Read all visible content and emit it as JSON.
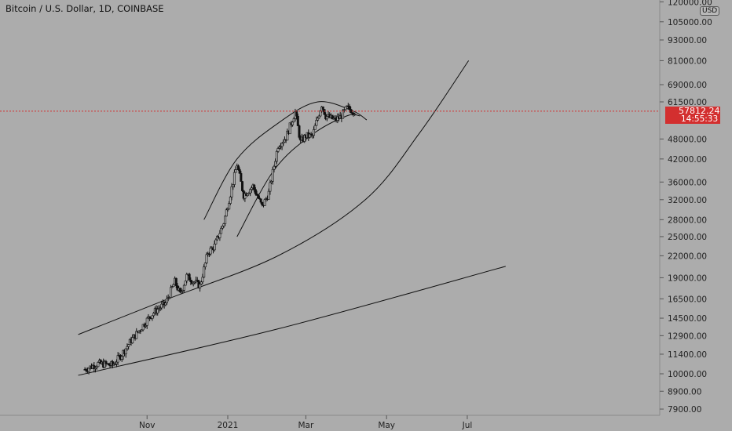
{
  "header": {
    "title": "Bitcoin / U.S. Dollar, 1D, COINBASE"
  },
  "axis_badge": {
    "currency": "USD"
  },
  "last_price": {
    "value": "57812.24",
    "countdown": "14:55:33",
    "color": "#d32f2f"
  },
  "colors": {
    "background": "#acacac",
    "candle": "#111111",
    "price_line": "#d32f2f"
  },
  "chart_data": {
    "type": "candlestick",
    "title": "Bitcoin / U.S. Dollar, 1D, COINBASE",
    "y_scale": "log",
    "y_tick_labels": [
      "120000.00",
      "105000.00",
      "93000.00",
      "81000.00",
      "69000.00",
      "61500.00",
      "48000.00",
      "42000.00",
      "36000.00",
      "32000.00",
      "28000.00",
      "25000.00",
      "22000.00",
      "19000.00",
      "16500.00",
      "14500.00",
      "12900.00",
      "11400.00",
      "10000.00",
      "8900.00",
      "7900.00"
    ],
    "x_tick_labels": [
      "Nov",
      "2021",
      "Mar",
      "May",
      "Jul"
    ],
    "last_price": 57812.24,
    "grid": false,
    "price_waypoints": [
      {
        "date": "2020-09-15",
        "price": 10300
      },
      {
        "date": "2020-09-25",
        "price": 10700
      },
      {
        "date": "2020-10-06",
        "price": 10600
      },
      {
        "date": "2020-10-13",
        "price": 11400
      },
      {
        "date": "2020-10-20",
        "price": 12500
      },
      {
        "date": "2020-10-27",
        "price": 13500
      },
      {
        "date": "2020-11-02",
        "price": 14500
      },
      {
        "date": "2020-11-08",
        "price": 15300
      },
      {
        "date": "2020-11-15",
        "price": 16000
      },
      {
        "date": "2020-11-22",
        "price": 18500
      },
      {
        "date": "2020-11-26",
        "price": 17000
      },
      {
        "date": "2020-12-01",
        "price": 19200
      },
      {
        "date": "2020-12-11",
        "price": 18000
      },
      {
        "date": "2020-12-17",
        "price": 22500
      },
      {
        "date": "2020-12-22",
        "price": 23500
      },
      {
        "date": "2020-12-29",
        "price": 27500
      },
      {
        "date": "2021-01-02",
        "price": 32000
      },
      {
        "date": "2021-01-08",
        "price": 40500
      },
      {
        "date": "2021-01-13",
        "price": 33000
      },
      {
        "date": "2021-01-20",
        "price": 35000
      },
      {
        "date": "2021-01-27",
        "price": 30500
      },
      {
        "date": "2021-02-01",
        "price": 33500
      },
      {
        "date": "2021-02-08",
        "price": 46000
      },
      {
        "date": "2021-02-14",
        "price": 48500
      },
      {
        "date": "2021-02-21",
        "price": 57500
      },
      {
        "date": "2021-02-25",
        "price": 47000
      },
      {
        "date": "2021-03-01",
        "price": 49000
      },
      {
        "date": "2021-03-06",
        "price": 49000
      },
      {
        "date": "2021-03-13",
        "price": 60500
      },
      {
        "date": "2021-03-16",
        "price": 56000
      },
      {
        "date": "2021-03-23",
        "price": 54500
      },
      {
        "date": "2021-03-27",
        "price": 55500
      },
      {
        "date": "2021-04-01",
        "price": 59000
      },
      {
        "date": "2021-04-07",
        "price": 57812
      }
    ],
    "drawings": [
      {
        "name": "arc-outer",
        "points": [
          {
            "date": "2020-12-14",
            "price": 28000
          },
          {
            "date": "2021-01-08",
            "price": 42000
          },
          {
            "date": "2021-02-10",
            "price": 54000
          },
          {
            "date": "2021-03-10",
            "price": 61500
          },
          {
            "date": "2021-04-05",
            "price": 58000
          },
          {
            "date": "2021-04-16",
            "price": 54500
          }
        ]
      },
      {
        "name": "arc-inner",
        "points": [
          {
            "date": "2021-01-08",
            "price": 25000
          },
          {
            "date": "2021-02-05",
            "price": 39000
          },
          {
            "date": "2021-03-06",
            "price": 49500
          },
          {
            "date": "2021-04-01",
            "price": 56000
          },
          {
            "date": "2021-04-11",
            "price": 56000
          }
        ]
      },
      {
        "name": "curve-middle",
        "points": [
          {
            "date": "2020-09-10",
            "price": 13000
          },
          {
            "date": "2020-11-17",
            "price": 16500
          },
          {
            "date": "2021-02-08",
            "price": 22000
          },
          {
            "date": "2021-04-15",
            "price": 32000
          },
          {
            "date": "2021-05-26",
            "price": 50000
          },
          {
            "date": "2021-07-02",
            "price": 81000
          }
        ]
      },
      {
        "name": "line-lower",
        "points": [
          {
            "date": "2020-09-10",
            "price": 9900
          },
          {
            "date": "2021-02-08",
            "price": 13500
          },
          {
            "date": "2021-07-30",
            "price": 20500
          }
        ]
      }
    ]
  }
}
